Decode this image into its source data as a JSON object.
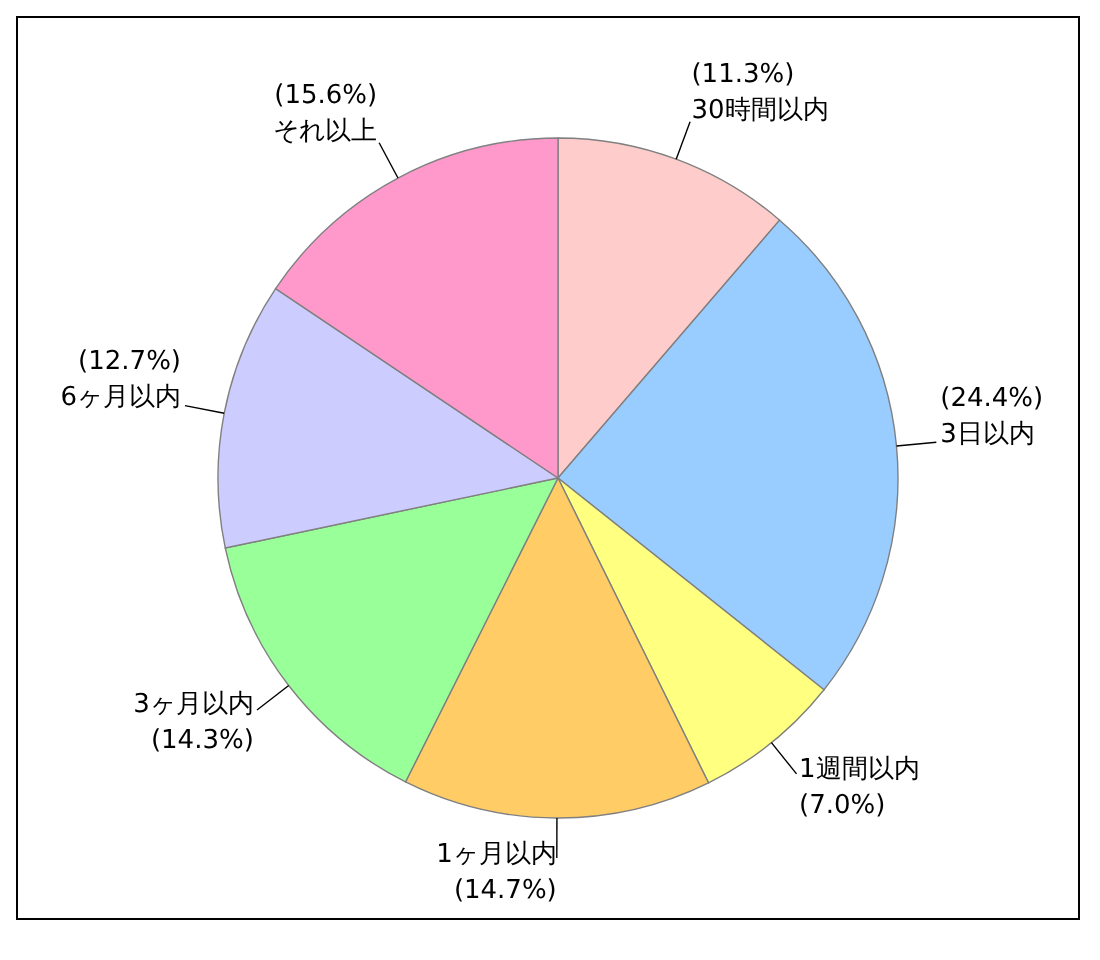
{
  "chart_data": {
    "type": "pie",
    "categories": [
      "30時間以内",
      "3日以内",
      "1週間以内",
      "1ヶ月以内",
      "3ヶ月以内",
      "6ヶ月以内",
      "それ以上"
    ],
    "values": [
      11.3,
      24.4,
      7.0,
      14.7,
      14.3,
      12.7,
      15.6
    ],
    "value_labels": [
      "(11.3%)",
      "(24.4%)",
      "(7.0%)",
      "(14.7%)",
      "(14.3%)",
      "(12.7%)",
      "(15.6%)"
    ],
    "colors": [
      "#ffcccc",
      "#99ccff",
      "#ffff80",
      "#ffcc66",
      "#99ff99",
      "#ccccff",
      "#ff99cc"
    ]
  }
}
